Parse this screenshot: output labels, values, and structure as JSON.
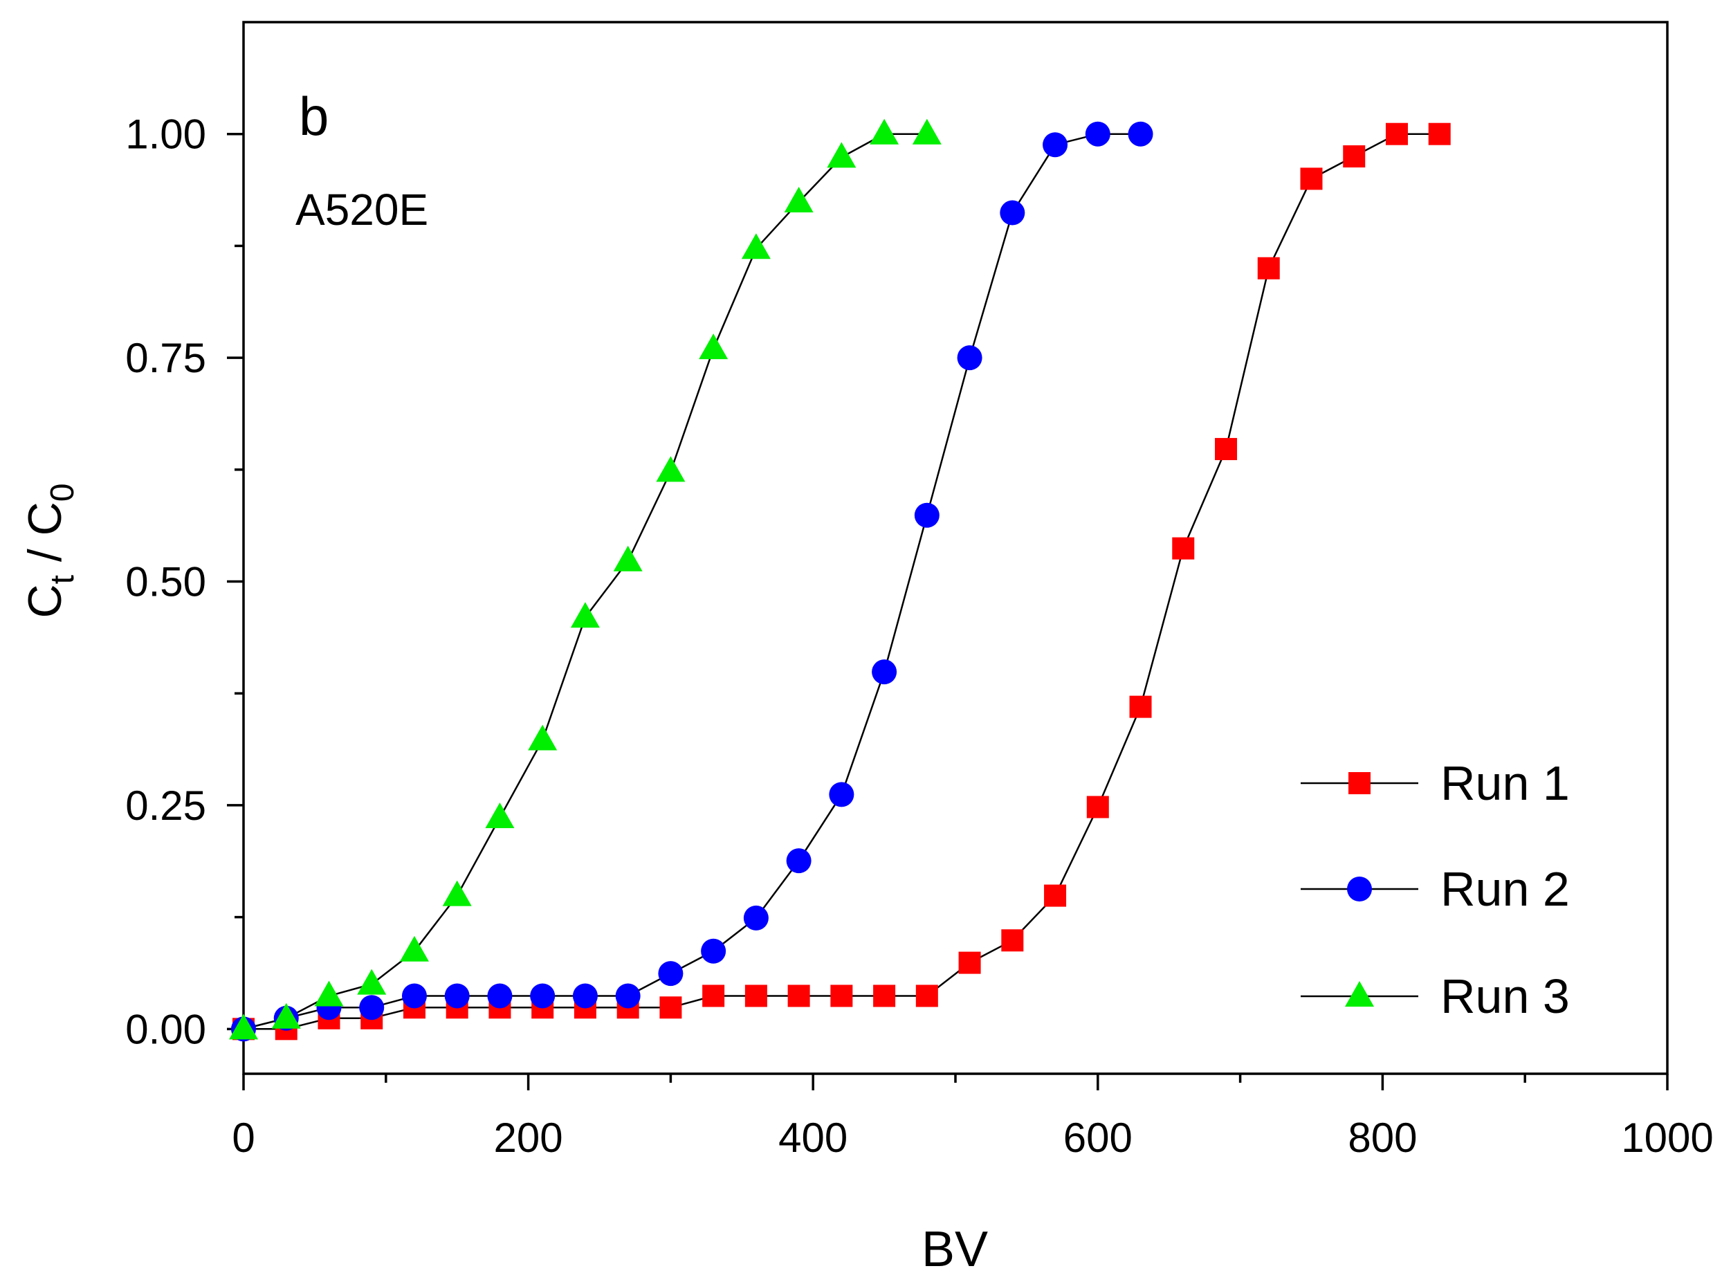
{
  "chart_data": {
    "type": "line",
    "panel_label": "b",
    "annotation": "A520E",
    "xlabel": "BV",
    "ylabel": {
      "main": "C",
      "sub1": "t",
      "sep": " / C",
      "sub2": "0"
    },
    "xlim": [
      0,
      1000
    ],
    "ylim": [
      -0.05,
      1.125
    ],
    "xticks": [
      0,
      200,
      400,
      600,
      800,
      1000
    ],
    "yticks": [
      0.0,
      0.25,
      0.5,
      0.75,
      1.0
    ],
    "xtick_labels": [
      "0",
      "200",
      "400",
      "600",
      "800",
      "1000"
    ],
    "ytick_labels": [
      "0.00",
      "0.25",
      "0.50",
      "0.75",
      "1.00"
    ],
    "legend_position": "bottom-right",
    "series": [
      {
        "name": "Run 1",
        "marker": "square",
        "color": "#ff0000",
        "x": [
          0,
          30,
          60,
          90,
          120,
          150,
          180,
          210,
          240,
          270,
          300,
          330,
          360,
          390,
          420,
          450,
          480,
          510,
          540,
          570,
          600,
          630,
          660,
          690,
          720,
          750,
          780,
          810,
          840
        ],
        "y": [
          0.0,
          0.0,
          0.012,
          0.012,
          0.024,
          0.024,
          0.024,
          0.024,
          0.024,
          0.024,
          0.024,
          0.037,
          0.037,
          0.037,
          0.037,
          0.037,
          0.037,
          0.074,
          0.099,
          0.149,
          0.248,
          0.36,
          0.537,
          0.648,
          0.85,
          0.95,
          0.975,
          1.0,
          1.0
        ]
      },
      {
        "name": "Run 2",
        "marker": "circle",
        "color": "#0000ff",
        "x": [
          0,
          30,
          60,
          90,
          120,
          150,
          180,
          210,
          240,
          270,
          300,
          330,
          360,
          390,
          420,
          450,
          480,
          510,
          540,
          570,
          600,
          630
        ],
        "y": [
          0.0,
          0.012,
          0.024,
          0.024,
          0.037,
          0.037,
          0.037,
          0.037,
          0.037,
          0.037,
          0.062,
          0.087,
          0.124,
          0.188,
          0.262,
          0.399,
          0.574,
          0.75,
          0.912,
          0.988,
          1.0,
          1.0
        ]
      },
      {
        "name": "Run 3",
        "marker": "triangle",
        "color": "#00ee00",
        "x": [
          0,
          30,
          60,
          90,
          120,
          150,
          180,
          210,
          240,
          270,
          300,
          330,
          360,
          390,
          420,
          450,
          480
        ],
        "y": [
          0.0,
          0.012,
          0.037,
          0.05,
          0.087,
          0.149,
          0.236,
          0.323,
          0.46,
          0.523,
          0.623,
          0.76,
          0.872,
          0.924,
          0.974,
          1.0,
          1.0
        ]
      }
    ]
  }
}
